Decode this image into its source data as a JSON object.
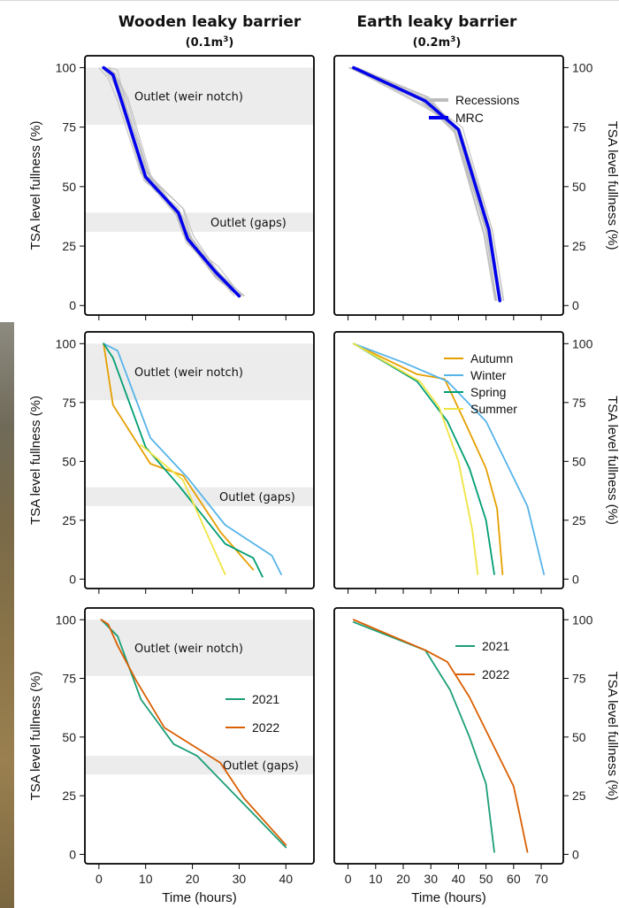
{
  "columns": [
    {
      "title": "Wooden leaky barrier",
      "subtitle_base": "(0.1m",
      "subtitle_sup": "3",
      "subtitle_end": ")"
    },
    {
      "title": "Earth leaky barrier",
      "subtitle_base": "(0.2m",
      "subtitle_sup": "3",
      "subtitle_end": ")"
    }
  ],
  "colors": {
    "recessions": "#bdbdbd",
    "mrc": "#0000ee",
    "autumn": "#e69f00",
    "winter": "#56b4e9",
    "spring": "#009e73",
    "summer": "#f0e442",
    "y2021": "#1b9e77",
    "y2022": "#d95f02",
    "band": "#ececec"
  },
  "chart_data": [
    {
      "type": "line",
      "panel": "top-left",
      "ylabel": "TSA level fullness (%)",
      "xlabel": "",
      "xlim": [
        -3,
        46
      ],
      "ylim": [
        -4,
        105
      ],
      "yticks": [
        "0",
        "25",
        "50",
        "75",
        "100"
      ],
      "xticks": [],
      "bands": [
        {
          "label": "Outlet (weir notch)",
          "y": [
            76,
            100
          ]
        },
        {
          "label": "Outlet (gaps)",
          "y": [
            31,
            39
          ]
        }
      ],
      "legend": null,
      "gray_recessions": true,
      "series": [
        {
          "name": "MRC",
          "color_key": "mrc",
          "x": [
            1,
            3,
            5,
            10,
            17,
            19,
            25,
            30
          ],
          "y": [
            100,
            97,
            85,
            54,
            39,
            28,
            14,
            4
          ]
        }
      ]
    },
    {
      "type": "line",
      "panel": "top-right",
      "ylabel": "TSA level fullness (%)",
      "xlabel": "",
      "xlim": [
        -5,
        78
      ],
      "ylim": [
        -4,
        105
      ],
      "yticks": [
        "0",
        "25",
        "50",
        "75",
        "100"
      ],
      "xticks": [],
      "bands": [],
      "legend": [
        {
          "label": "Recessions",
          "color_key": "recessions"
        },
        {
          "label": "MRC",
          "color_key": "mrc"
        }
      ],
      "gray_recessions": true,
      "series": [
        {
          "name": "MRC",
          "color_key": "mrc",
          "x": [
            2,
            28,
            40,
            51,
            55
          ],
          "y": [
            100,
            86,
            74,
            32,
            2
          ]
        }
      ]
    },
    {
      "type": "line",
      "panel": "middle-left",
      "ylabel": "TSA level fullness (%)",
      "xlabel": "",
      "xlim": [
        -3,
        46
      ],
      "ylim": [
        -4,
        105
      ],
      "yticks": [
        "0",
        "25",
        "50",
        "75",
        "100"
      ],
      "xticks": [],
      "bands": [
        {
          "label": "Outlet (weir notch)",
          "y": [
            76,
            100
          ]
        },
        {
          "label": "Outlet (gaps)",
          "y": [
            31,
            39
          ]
        }
      ],
      "legend": null,
      "gray_recessions": false,
      "series": [
        {
          "name": "Autumn",
          "color_key": "autumn",
          "x": [
            1,
            3,
            11,
            18,
            26,
            33
          ],
          "y": [
            100,
            74,
            49,
            44,
            20,
            4
          ]
        },
        {
          "name": "Winter",
          "color_key": "winter",
          "x": [
            1,
            4,
            11,
            19,
            27,
            37,
            39
          ],
          "y": [
            100,
            97,
            60,
            43,
            23,
            10,
            2
          ]
        },
        {
          "name": "Spring",
          "color_key": "spring",
          "x": [
            1,
            3,
            10,
            17,
            27,
            33,
            35
          ],
          "y": [
            100,
            94,
            56,
            40,
            15,
            9,
            1
          ]
        },
        {
          "name": "Summer",
          "color_key": "summer",
          "x": [
            9,
            18,
            27
          ],
          "y": [
            57,
            42,
            2
          ]
        }
      ]
    },
    {
      "type": "line",
      "panel": "middle-right",
      "ylabel": "TSA level fullness (%)",
      "xlabel": "",
      "xlim": [
        -5,
        78
      ],
      "ylim": [
        -4,
        105
      ],
      "yticks": [
        "0",
        "25",
        "50",
        "75",
        "100"
      ],
      "xticks": [],
      "bands": [],
      "legend": [
        {
          "label": "Autumn",
          "color_key": "autumn"
        },
        {
          "label": "Winter",
          "color_key": "winter"
        },
        {
          "label": "Spring",
          "color_key": "spring"
        },
        {
          "label": "Summer",
          "color_key": "summer"
        }
      ],
      "gray_recessions": false,
      "series": [
        {
          "name": "Autumn",
          "color_key": "autumn",
          "x": [
            2,
            25,
            35,
            43,
            50,
            54,
            56
          ],
          "y": [
            100,
            87,
            85,
            65,
            47,
            30,
            2
          ]
        },
        {
          "name": "Winter",
          "color_key": "winter",
          "x": [
            2,
            20,
            36,
            50,
            65,
            71
          ],
          "y": [
            100,
            92,
            84,
            67,
            31,
            2
          ]
        },
        {
          "name": "Spring",
          "color_key": "spring",
          "x": [
            2,
            25,
            36,
            44,
            50,
            53
          ],
          "y": [
            100,
            84,
            67,
            47,
            25,
            2
          ]
        },
        {
          "name": "Summer",
          "color_key": "summer",
          "x": [
            2,
            26,
            33,
            40,
            45,
            47
          ],
          "y": [
            100,
            84,
            73,
            50,
            21,
            2
          ]
        }
      ]
    },
    {
      "type": "line",
      "panel": "bottom-left",
      "ylabel": "TSA level fullness (%)",
      "xlabel": "Time (hours)",
      "xlim": [
        -3,
        46
      ],
      "ylim": [
        -4,
        105
      ],
      "yticks": [
        "0",
        "25",
        "50",
        "75",
        "100"
      ],
      "xticks": [
        "0",
        "10",
        "20",
        "30",
        "40"
      ],
      "bands": [
        {
          "label": "Outlet (weir notch)",
          "y": [
            76,
            100
          ]
        },
        {
          "label": "Outlet (gaps)",
          "y": [
            34,
            42
          ]
        }
      ],
      "legend": [
        {
          "label": "2021",
          "color_key": "y2021"
        },
        {
          "label": "2022",
          "color_key": "y2022"
        }
      ],
      "gray_recessions": false,
      "series": [
        {
          "name": "2021",
          "color_key": "y2021",
          "x": [
            0.5,
            2,
            4,
            9,
            16,
            21,
            40
          ],
          "y": [
            100,
            97,
            93,
            66,
            47,
            42,
            3
          ]
        },
        {
          "name": "2022",
          "color_key": "y2022",
          "x": [
            0.5,
            2,
            4,
            8,
            14,
            26,
            31,
            40
          ],
          "y": [
            100,
            98,
            89,
            74,
            54,
            39,
            24,
            4
          ]
        }
      ]
    },
    {
      "type": "line",
      "panel": "bottom-right",
      "ylabel": "TSA level fullness (%)",
      "xlabel": "Time (hours)",
      "xlim": [
        -5,
        78
      ],
      "ylim": [
        -4,
        105
      ],
      "yticks": [
        "0",
        "25",
        "50",
        "75",
        "100"
      ],
      "xticks": [
        "0",
        "10",
        "20",
        "30",
        "40",
        "50",
        "60",
        "70"
      ],
      "bands": [],
      "legend": [
        {
          "label": "2021",
          "color_key": "y2021"
        },
        {
          "label": "2022",
          "color_key": "y2022"
        }
      ],
      "gray_recessions": false,
      "series": [
        {
          "name": "2021",
          "color_key": "y2021",
          "x": [
            2,
            28,
            37,
            44,
            50,
            53
          ],
          "y": [
            99,
            87,
            70,
            50,
            30,
            1
          ]
        },
        {
          "name": "2022",
          "color_key": "y2022",
          "x": [
            2,
            28,
            36,
            44,
            52,
            60,
            62,
            65
          ],
          "y": [
            100,
            87,
            82,
            67,
            48,
            29,
            18,
            1
          ]
        }
      ]
    }
  ]
}
